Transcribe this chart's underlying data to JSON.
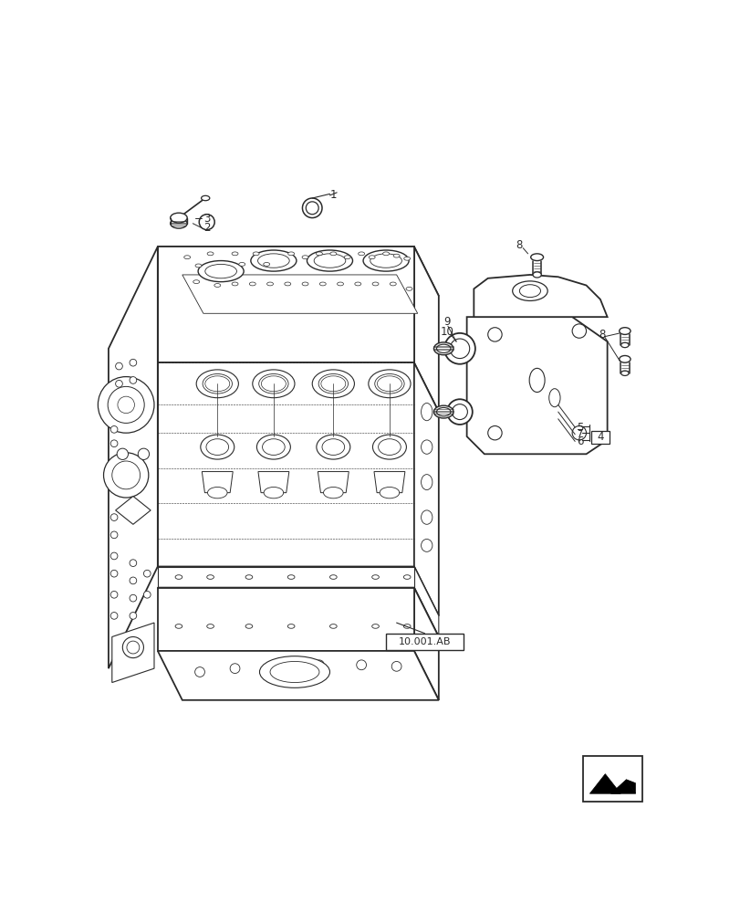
{
  "bg": "#ffffff",
  "lc": "#2a2a2a",
  "fig_w": 8.12,
  "fig_h": 10.0,
  "dpi": 100,
  "ref_label": "10.001.AB",
  "label_fs": 8.5,
  "anno_fs": 8.5
}
